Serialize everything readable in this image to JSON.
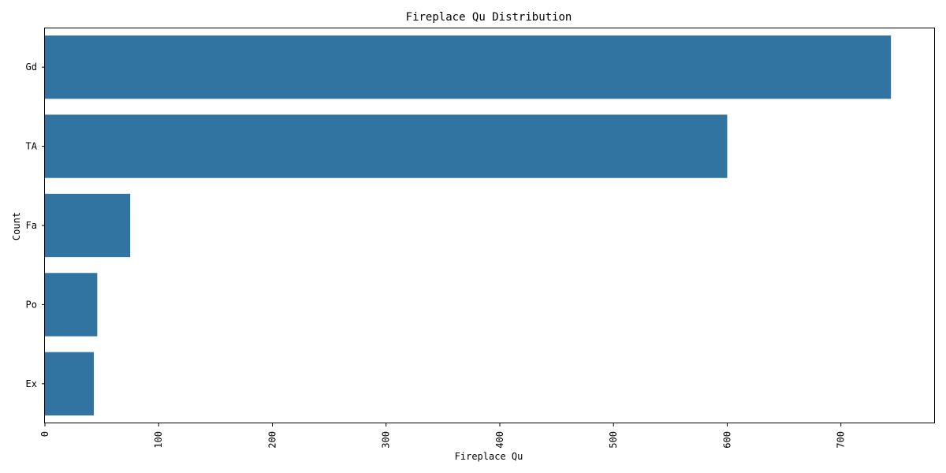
{
  "chart_data": {
    "type": "bar",
    "orientation": "horizontal",
    "title": "Fireplace Qu Distribution",
    "xlabel": "Fireplace Qu",
    "ylabel": "Count",
    "categories": [
      "Gd",
      "TA",
      "Fa",
      "Po",
      "Ex"
    ],
    "values": [
      744,
      600,
      75,
      46,
      43
    ],
    "xlim": [
      0,
      782
    ],
    "xticks": [
      0,
      100,
      200,
      300,
      400,
      500,
      600,
      700
    ],
    "bar_color": "#3274a1",
    "grid": false
  }
}
